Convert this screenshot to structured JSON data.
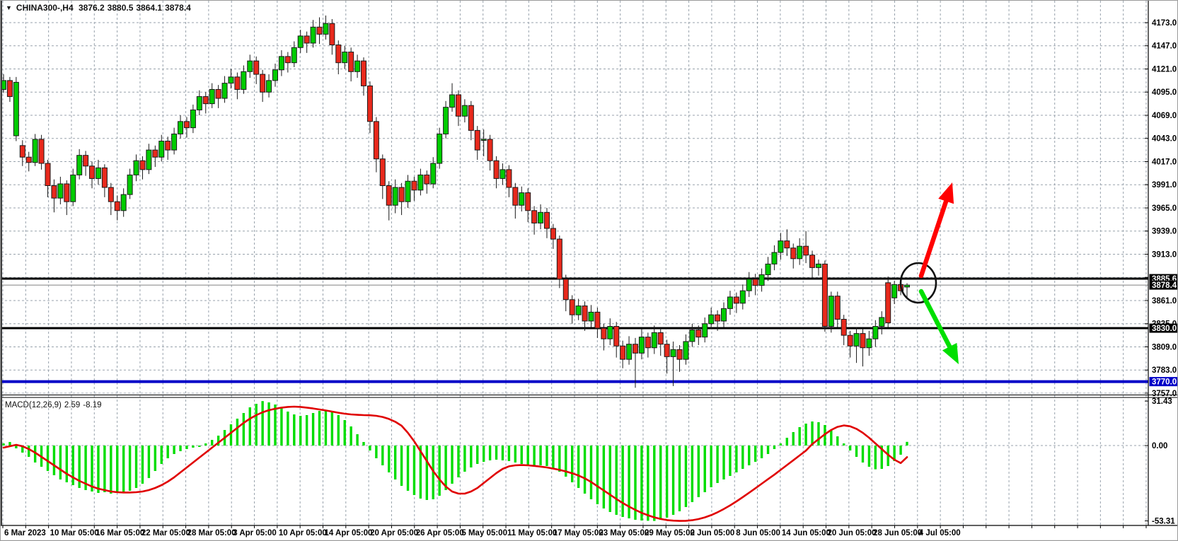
{
  "header": {
    "dropdown_icon": "▼",
    "symbol": "CHINA300-,H4",
    "open": "3876.2",
    "high": "3880.5",
    "low": "3864.1",
    "close": "3878.4"
  },
  "price_axis": {
    "ticks": [
      "4173.0",
      "4147.0",
      "4121.0",
      "4095.0",
      "4069.0",
      "4043.0",
      "4017.0",
      "3991.0",
      "3965.0",
      "3939.0",
      "3913.0",
      "3887.0",
      "3861.0",
      "3835.0",
      "3809.0",
      "3783.0",
      "3757.0"
    ],
    "line_labels": [
      {
        "text": "3885.6",
        "price": 3885.6,
        "bg": "#000000"
      },
      {
        "text": "3878.4",
        "price": 3878.4,
        "bg": "#000000"
      },
      {
        "text": "3830.0",
        "price": 3830.0,
        "bg": "#000000"
      },
      {
        "text": "3770.0",
        "price": 3770.0,
        "bg": "#0000C8"
      }
    ]
  },
  "time_axis": {
    "labels": [
      "6 Mar 2023",
      "10 Mar 05:00",
      "16 Mar 05:00",
      "22 Mar 05:00",
      "28 Mar 05:00",
      "3 Apr 05:00",
      "10 Apr 05:00",
      "14 Apr 05:00",
      "20 Apr 05:00",
      "26 Apr 05:00",
      "5 May 05:00",
      "11 May 05:00",
      "17 May 05:00",
      "23 May 05:00",
      "29 May 05:00",
      "2 Jun 05:00",
      "8 Jun 05:00",
      "14 Jun 05:00",
      "20 Jun 05:00",
      "28 Jun 05:00",
      "4 Jul 05:00"
    ]
  },
  "macd_panel": {
    "label": "MACD(12,26,9)",
    "main_value": "2.59",
    "signal_value": "-8.19",
    "ticks": [
      "31.43",
      "0.00",
      "-53.31"
    ]
  },
  "annotations": {
    "circle": {
      "color": "#111111"
    },
    "up_arrow": {
      "color": "#FF0000",
      "direction": "up"
    },
    "down_arrow": {
      "color": "#00DF00",
      "direction": "down"
    }
  },
  "colors": {
    "background": "#FFFFFF",
    "grid": "#98A2AC",
    "bull": "#00CC00",
    "bear": "#E8291C",
    "wick": "#1A1A1A",
    "macd_bar": "#00DD00",
    "macd_signal": "#E00000",
    "hline_black": "#000000",
    "hline_blue": "#0000C8",
    "current_price_line": "#808080",
    "axis_text": "#000000"
  },
  "chart_data": [
    {
      "type": "candlestick",
      "title": "CHINA300- H4",
      "ylim": [
        3745,
        4190
      ],
      "price_ticks": [
        4173,
        4147,
        4121,
        4095,
        4069,
        4043,
        4017,
        3991,
        3965,
        3939,
        3913,
        3887,
        3861,
        3835,
        3809,
        3783,
        3757
      ],
      "hlines": [
        {
          "price": 3885.6,
          "color": "#000000",
          "width": 3,
          "role": "resistance"
        },
        {
          "price": 3878.4,
          "color": "#808080",
          "width": 1,
          "role": "current-price"
        },
        {
          "price": 3830.0,
          "color": "#000000",
          "width": 3,
          "role": "support"
        },
        {
          "price": 3770.0,
          "color": "#0000C8",
          "width": 4,
          "role": "lower-support"
        }
      ],
      "candles": [
        [
          4098,
          4115,
          4094,
          4108
        ],
        [
          4108,
          4112,
          4084,
          4090
        ],
        [
          4046,
          4112,
          4040,
          4106
        ],
        [
          4035,
          4041,
          4012,
          4022
        ],
        [
          4022,
          4028,
          4006,
          4016
        ],
        [
          4016,
          4048,
          4012,
          4042
        ],
        [
          4042,
          4047,
          4008,
          4015
        ],
        [
          4015,
          4019,
          3977,
          3990
        ],
        [
          3990,
          3997,
          3960,
          3976
        ],
        [
          3976,
          4000,
          3969,
          3992
        ],
        [
          3992,
          3996,
          3957,
          3972
        ],
        [
          3972,
          4009,
          3967,
          4002
        ],
        [
          4002,
          4031,
          3997,
          4024
        ],
        [
          4024,
          4029,
          4001,
          4012
        ],
        [
          4012,
          4017,
          3987,
          3998
        ],
        [
          3998,
          4019,
          3991,
          4010
        ],
        [
          4010,
          4014,
          3977,
          3988
        ],
        [
          3988,
          3993,
          3957,
          3972
        ],
        [
          3972,
          3979,
          3951,
          3962
        ],
        [
          3962,
          3987,
          3955,
          3980
        ],
        [
          3980,
          4009,
          3975,
          4002
        ],
        [
          4002,
          4025,
          3995,
          4018
        ],
        [
          4018,
          4023,
          3997,
          4008
        ],
        [
          4008,
          4037,
          4003,
          4030
        ],
        [
          4030,
          4035,
          4011,
          4022
        ],
        [
          4022,
          4047,
          4017,
          4040
        ],
        [
          4040,
          4045,
          4019,
          4030
        ],
        [
          4030,
          4055,
          4025,
          4048
        ],
        [
          4048,
          4069,
          4043,
          4062
        ],
        [
          4062,
          4067,
          4044,
          4055
        ],
        [
          4055,
          4081,
          4049,
          4075
        ],
        [
          4075,
          4097,
          4069,
          4090
        ],
        [
          4090,
          4095,
          4071,
          4082
        ],
        [
          4082,
          4105,
          4077,
          4098
        ],
        [
          4098,
          4103,
          4077,
          4088
        ],
        [
          4088,
          4113,
          4083,
          4105
        ],
        [
          4105,
          4121,
          4099,
          4112
        ],
        [
          4112,
          4117,
          4087,
          4098
        ],
        [
          4098,
          4125,
          4093,
          4118
        ],
        [
          4118,
          4137,
          4111,
          4130
        ],
        [
          4130,
          4135,
          4104,
          4115
        ],
        [
          4115,
          4120,
          4084,
          4095
        ],
        [
          4095,
          4115,
          4089,
          4108
        ],
        [
          4108,
          4127,
          4101,
          4120
        ],
        [
          4120,
          4142,
          4113,
          4135
        ],
        [
          4135,
          4140,
          4117,
          4128
        ],
        [
          4128,
          4152,
          4123,
          4145
        ],
        [
          4145,
          4165,
          4139,
          4158
        ],
        [
          4158,
          4163,
          4139,
          4150
        ],
        [
          4150,
          4176,
          4145,
          4168
        ],
        [
          4168,
          4179,
          4149,
          4160
        ],
        [
          4160,
          4181,
          4154,
          4172
        ],
        [
          4172,
          4177,
          4137,
          4148
        ],
        [
          4148,
          4153,
          4115,
          4128
        ],
        [
          4128,
          4147,
          4121,
          4140
        ],
        [
          4140,
          4145,
          4107,
          4118
        ],
        [
          4118,
          4137,
          4111,
          4130
        ],
        [
          4130,
          4134,
          4091,
          4102
        ],
        [
          4102,
          4107,
          4049,
          4062
        ],
        [
          4062,
          4067,
          4005,
          4020
        ],
        [
          4020,
          4025,
          3975,
          3990
        ],
        [
          3990,
          3995,
          3951,
          3968
        ],
        [
          3968,
          3997,
          3959,
          3988
        ],
        [
          3988,
          3993,
          3957,
          3972
        ],
        [
          3972,
          4002,
          3965,
          3995
        ],
        [
          3995,
          4000,
          3973,
          3985
        ],
        [
          3985,
          4009,
          3979,
          4002
        ],
        [
          4002,
          4007,
          3981,
          3992
        ],
        [
          3992,
          4022,
          3987,
          4015
        ],
        [
          4015,
          4055,
          4009,
          4048
        ],
        [
          4048,
          4085,
          4043,
          4078
        ],
        [
          4078,
          4105,
          4073,
          4092
        ],
        [
          4092,
          4097,
          4057,
          4068
        ],
        [
          4068,
          4087,
          4061,
          4080
        ],
        [
          4080,
          4085,
          4041,
          4052
        ],
        [
          4052,
          4057,
          4019,
          4030
        ],
        [
          4041,
          4053,
          4023,
          4042
        ],
        [
          4042,
          4047,
          4007,
          4018
        ],
        [
          4018,
          4023,
          3987,
          3998
        ],
        [
          3998,
          4015,
          3991,
          4008
        ],
        [
          4008,
          4013,
          3977,
          3988
        ],
        [
          3988,
          3993,
          3953,
          3968
        ],
        [
          3968,
          3989,
          3961,
          3982
        ],
        [
          3982,
          3987,
          3949,
          3962
        ],
        [
          3962,
          3967,
          3935,
          3948
        ],
        [
          3948,
          3969,
          3941,
          3960
        ],
        [
          3960,
          3965,
          3931,
          3942
        ],
        [
          3942,
          3947,
          3919,
          3930
        ],
        [
          3930,
          3934,
          3875,
          3885
        ],
        [
          3885,
          3890,
          3849,
          3862
        ],
        [
          3862,
          3867,
          3835,
          3845
        ],
        [
          3845,
          3863,
          3839,
          3855
        ],
        [
          3855,
          3860,
          3827,
          3838
        ],
        [
          3838,
          3856,
          3831,
          3848
        ],
        [
          3848,
          3853,
          3819,
          3830
        ],
        [
          3830,
          3835,
          3805,
          3818
        ],
        [
          3818,
          3841,
          3811,
          3832
        ],
        [
          3832,
          3837,
          3797,
          3810
        ],
        [
          3810,
          3816,
          3785,
          3795
        ],
        [
          3795,
          3821,
          3789,
          3812
        ],
        [
          3812,
          3819,
          3763,
          3802
        ],
        [
          3802,
          3829,
          3795,
          3820
        ],
        [
          3820,
          3825,
          3797,
          3808
        ],
        [
          3808,
          3833,
          3801,
          3825
        ],
        [
          3825,
          3830,
          3799,
          3812
        ],
        [
          3812,
          3817,
          3779,
          3798
        ],
        [
          3798,
          3815,
          3765,
          3806
        ],
        [
          3806,
          3811,
          3781,
          3795
        ],
        [
          3795,
          3823,
          3789,
          3815
        ],
        [
          3815,
          3835,
          3809,
          3828
        ],
        [
          3828,
          3833,
          3811,
          3820
        ],
        [
          3820,
          3842,
          3814,
          3835
        ],
        [
          3835,
          3853,
          3829,
          3845
        ],
        [
          3845,
          3850,
          3827,
          3838
        ],
        [
          3838,
          3859,
          3831,
          3852
        ],
        [
          3852,
          3872,
          3845,
          3865
        ],
        [
          3865,
          3870,
          3847,
          3858
        ],
        [
          3858,
          3879,
          3851,
          3872
        ],
        [
          3872,
          3893,
          3865,
          3885
        ],
        [
          3885,
          3891,
          3867,
          3878
        ],
        [
          3878,
          3897,
          3871,
          3890
        ],
        [
          3890,
          3910,
          3883,
          3902
        ],
        [
          3902,
          3923,
          3895,
          3915
        ],
        [
          3915,
          3937,
          3907,
          3928
        ],
        [
          3928,
          3941,
          3911,
          3920
        ],
        [
          3920,
          3925,
          3897,
          3908
        ],
        [
          3908,
          3931,
          3901,
          3922
        ],
        [
          3922,
          3939,
          3903,
          3912
        ],
        [
          3912,
          3917,
          3887,
          3898
        ],
        [
          3898,
          3907,
          3889,
          3902
        ],
        [
          3902,
          3906,
          3826,
          3832
        ],
        [
          3832,
          3871,
          3825,
          3866
        ],
        [
          3866,
          3871,
          3831,
          3840
        ],
        [
          3840,
          3845,
          3811,
          3822
        ],
        [
          3822,
          3827,
          3797,
          3810
        ],
        [
          3810,
          3831,
          3791,
          3824
        ],
        [
          3824,
          3829,
          3787,
          3808
        ],
        [
          3808,
          3827,
          3799,
          3818
        ],
        [
          3818,
          3839,
          3809,
          3832
        ],
        [
          3832,
          3849,
          3823,
          3842
        ],
        [
          3881,
          3888,
          3831,
          3836
        ],
        [
          3864,
          3883,
          3857,
          3879
        ],
        [
          3879,
          3886,
          3867,
          3872
        ],
        [
          3876.2,
          3880.5,
          3864.1,
          3878.4
        ]
      ]
    },
    {
      "type": "bar+line",
      "name": "MACD(12,26,9)",
      "params": [
        12,
        26,
        9
      ],
      "ticks": [
        31.43,
        0,
        -53.31
      ],
      "ylim": [
        -56,
        34
      ],
      "histogram": [
        1.5,
        2.5,
        -2,
        -5,
        -8,
        -12,
        -15,
        -18,
        -21,
        -24,
        -26,
        -28,
        -30,
        -31.5,
        -32.5,
        -33.5,
        -33,
        -34,
        -33.5,
        -33,
        -32,
        -30,
        -27,
        -23,
        -18,
        -13,
        -9,
        -6,
        -4,
        -2.5,
        -1.5,
        -1,
        1.5,
        4,
        7,
        11,
        15,
        19,
        23,
        27,
        29.5,
        31.43,
        30.5,
        29,
        26.5,
        24,
        22,
        21,
        21.5,
        23,
        24.5,
        25,
        24,
        21.5,
        18,
        13.5,
        8,
        2.5,
        -3.5,
        -9,
        -14,
        -19,
        -24,
        -28.5,
        -32,
        -35,
        -37.5,
        -38.5,
        -38,
        -35.5,
        -31.5,
        -27,
        -22.5,
        -18.5,
        -15.5,
        -13,
        -11.5,
        -10.5,
        -10,
        -10.5,
        -11,
        -12,
        -13,
        -13.5,
        -14,
        -14,
        -14.5,
        -16,
        -18.5,
        -22,
        -26,
        -30,
        -34,
        -38,
        -41.5,
        -44.5,
        -47,
        -49,
        -50.5,
        -51.5,
        -52.5,
        -53,
        -53.2,
        -53.31,
        -52.5,
        -51,
        -49,
        -46.5,
        -43.5,
        -40,
        -36.5,
        -33,
        -29.5,
        -26.5,
        -24,
        -21.5,
        -19,
        -16.5,
        -14,
        -11.5,
        -9,
        -6,
        -2.5,
        1.5,
        5.5,
        9.5,
        13,
        15.5,
        17,
        16.5,
        14.5,
        11,
        6.5,
        1.5,
        -3.5,
        -8,
        -12,
        -15,
        -16.8,
        -16.5,
        -14.5,
        -11,
        -6.5,
        2.59
      ],
      "signal": [
        -1.5,
        -0.5,
        0.5,
        -0.5,
        -2.5,
        -5,
        -8,
        -11,
        -14,
        -17,
        -20,
        -22.5,
        -25,
        -27,
        -29,
        -30.5,
        -31.5,
        -32.5,
        -33,
        -33.2,
        -33.2,
        -33,
        -32.5,
        -31.5,
        -30,
        -28,
        -25.5,
        -22.5,
        -19,
        -15.5,
        -12,
        -8.5,
        -5,
        -1.5,
        2,
        5.5,
        9,
        12.5,
        16,
        19,
        21.5,
        23.5,
        25,
        26,
        26.8,
        27.3,
        27.5,
        27.3,
        26.8,
        26.2,
        25.5,
        24.8,
        24,
        23.2,
        22.5,
        22,
        21.7,
        21.5,
        21.4,
        21,
        20.2,
        18.8,
        16.8,
        14,
        9,
        3,
        -4,
        -11,
        -18,
        -24,
        -29,
        -32.5,
        -34,
        -34,
        -32.5,
        -30,
        -26.5,
        -23,
        -19.5,
        -16.5,
        -14.7,
        -14,
        -13.8,
        -14,
        -14.4,
        -14.9,
        -15.5,
        -16.3,
        -17.2,
        -18.3,
        -19.6,
        -21.2,
        -23.2,
        -25.8,
        -28.8,
        -31.8,
        -34.8,
        -37.8,
        -40.6,
        -43.2,
        -45.5,
        -47.6,
        -49.3,
        -50.8,
        -51.9,
        -52.7,
        -53.1,
        -53.31,
        -53.2,
        -52.8,
        -52,
        -50.8,
        -49.2,
        -47.2,
        -44.9,
        -42.3,
        -39.5,
        -36.5,
        -33.4,
        -30.2,
        -27,
        -23.8,
        -20.6,
        -17.2,
        -13.8,
        -10.4,
        -7,
        -3.6,
        1,
        4.5,
        8,
        11,
        13.2,
        14.2,
        13.6,
        11.8,
        9,
        5.5,
        1.5,
        -2.5,
        -6.5,
        -10,
        -12.4,
        -8.19
      ]
    }
  ]
}
